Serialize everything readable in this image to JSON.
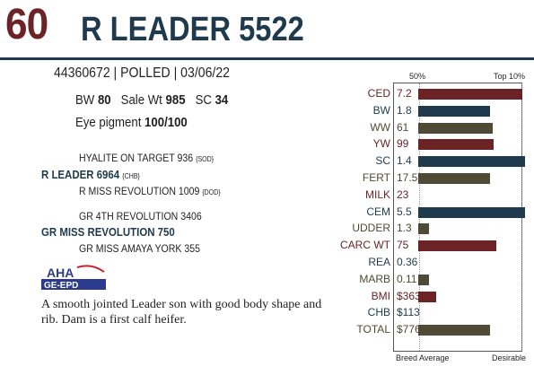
{
  "header": {
    "lot": "60",
    "name": "R LEADER 5522"
  },
  "info": {
    "ids_line": "44360672 | POLLED | 03/06/22",
    "bw_label": "BW",
    "bw_value": "80",
    "sale_label": "Sale Wt",
    "sale_value": "985",
    "sc_label": "SC",
    "sc_value": "34",
    "eye_label": "Eye pigment",
    "eye_value": "100/100"
  },
  "pedigree": {
    "sire_sire": "HYALITE ON TARGET 936",
    "sire_sire_tag": "{SOD}",
    "sire": "R LEADER 6964",
    "sire_tag": "{CHB}",
    "sire_dam": "R MISS REVOLUTION 1009",
    "sire_dam_tag": "{DOD}",
    "dam_sire": "GR 4TH REVOLUTION 3406",
    "dam": "GR MISS REVOLUTION 750",
    "dam_dam": "GR MISS AMAYA YORK 355"
  },
  "logo": {
    "top": "AHA",
    "bottom": "GE-EPD"
  },
  "description": "A smooth jointed Leader son with good body shape and rib. Dam is a first calf heifer.",
  "epd_chart": {
    "top_left_label": "50%",
    "top_right_label": "Top 10%",
    "bottom_left_label": "Breed Average",
    "bottom_right_label": "Desirable",
    "colors": {
      "red": "#6b2326",
      "blue": "#1e3a4c",
      "olive": "#4f4a35"
    },
    "traits": [
      {
        "name": "CED",
        "value": "7.2",
        "level": 0.77,
        "color": "red"
      },
      {
        "name": "BW",
        "value": "1.8",
        "level": 0.53,
        "color": "blue"
      },
      {
        "name": "WW",
        "value": "61",
        "level": 0.55,
        "color": "olive"
      },
      {
        "name": "YW",
        "value": "99",
        "level": 0.56,
        "color": "red"
      },
      {
        "name": "SC",
        "value": "1.4",
        "level": 0.79,
        "color": "blue"
      },
      {
        "name": "FERT",
        "value": "17.5",
        "level": 0.53,
        "color": "olive"
      },
      {
        "name": "MILK",
        "value": "23",
        "level": 0,
        "color": "red"
      },
      {
        "name": "CEM",
        "value": "5.5",
        "level": 0.79,
        "color": "blue"
      },
      {
        "name": "UDDER",
        "value": "1.3",
        "level": 0.08,
        "color": "olive"
      },
      {
        "name": "CARC WT",
        "value": "75",
        "level": 0.58,
        "color": "red"
      },
      {
        "name": "REA",
        "value": "0.36",
        "level": 0,
        "color": "blue"
      },
      {
        "name": "MARB",
        "value": "0.11",
        "level": 0.08,
        "color": "olive"
      },
      {
        "name": "BMI",
        "value": "$363",
        "level": 0.13,
        "color": "red"
      },
      {
        "name": "CHB",
        "value": "$113",
        "level": 0,
        "color": "blue"
      },
      {
        "name": "TOTAL",
        "value": "$776",
        "level": 0.53,
        "color": "olive"
      }
    ]
  }
}
